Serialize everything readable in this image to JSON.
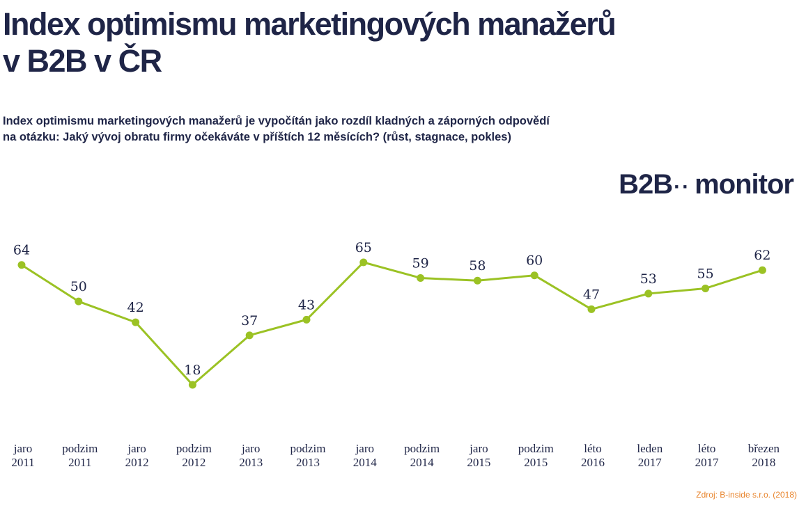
{
  "header": {
    "title_line1": "Index optimismu marketingových manažerů",
    "title_line2": "v B2B v ČR",
    "subtitle_line1": "Index optimismu marketingových manažerů je vypočítán jako rozdíl kladných a záporných odpovědí",
    "subtitle_line2": "na otázku: Jaký vývoj obratu firmy očekáváte v příštích 12 měsících? (růst, stagnace, pokles)"
  },
  "logo": {
    "left": "B2B",
    "dots": "··",
    "right": "monitor"
  },
  "source": "Zdroj: B-inside s.r.o. (2018)",
  "colors": {
    "line": "#9bc224",
    "text": "#1f2547",
    "source": "#e8842c"
  },
  "chart_data": {
    "type": "line",
    "categories": [
      [
        "jaro",
        "2011"
      ],
      [
        "podzim",
        "2011"
      ],
      [
        "jaro",
        "2012"
      ],
      [
        "podzim",
        "2012"
      ],
      [
        "jaro",
        "2013"
      ],
      [
        "podzim",
        "2013"
      ],
      [
        "jaro",
        "2014"
      ],
      [
        "podzim",
        "2014"
      ],
      [
        "jaro",
        "2015"
      ],
      [
        "podzim",
        "2015"
      ],
      [
        "léto",
        "2016"
      ],
      [
        "leden",
        "2017"
      ],
      [
        "léto",
        "2017"
      ],
      [
        "březen",
        "2018"
      ]
    ],
    "values": [
      64,
      50,
      42,
      18,
      37,
      43,
      65,
      59,
      58,
      60,
      47,
      53,
      55,
      62
    ],
    "title": "Index optimismu marketingových manažerů v B2B v ČR",
    "xlabel": "",
    "ylabel": "",
    "grid": false,
    "legend": "none",
    "data_labels": true
  }
}
